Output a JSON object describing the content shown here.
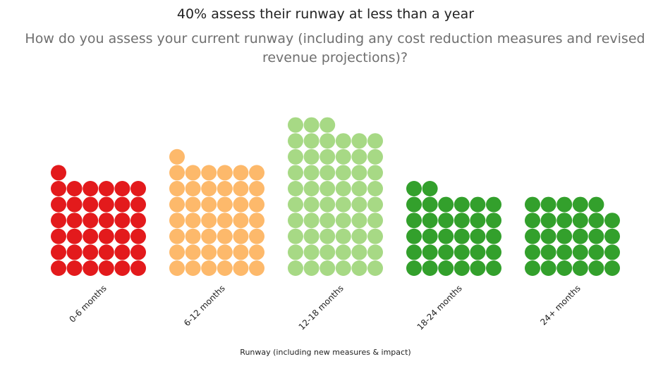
{
  "chart_data": {
    "type": "bar",
    "title": "40% assess their runway at less than a year",
    "subtitle": "How do you assess your current runway (including any cost reduction measures and revised revenue projections)?",
    "xlabel": "Runway (including new measures & impact)",
    "ylabel": "",
    "categories": [
      "0-6 months",
      "6-12 months",
      "12-18 months",
      "18-24 months",
      "24+ months"
    ],
    "values": [
      37,
      43,
      57,
      32,
      29
    ],
    "colors": [
      "#e31a1c",
      "#fdb96b",
      "#a7d985",
      "#33a02c",
      "#33a02c"
    ],
    "grid": false,
    "legend": "none"
  }
}
